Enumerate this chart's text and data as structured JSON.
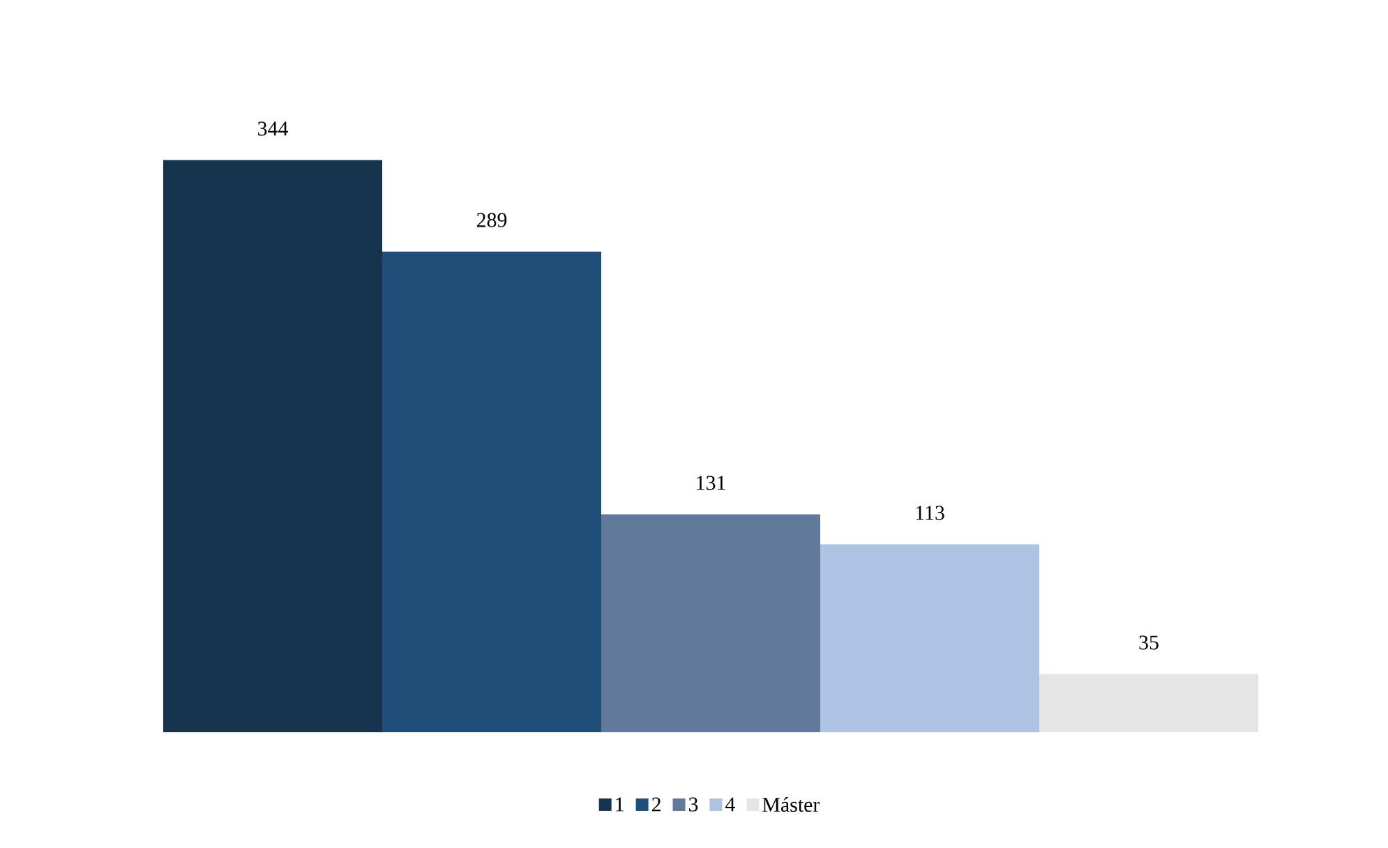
{
  "chart_data": {
    "type": "bar",
    "categories": [
      null
    ],
    "series": [
      {
        "name": "1",
        "color": "#17344f",
        "values": [
          344
        ]
      },
      {
        "name": "2",
        "color": "#1f4e79",
        "values": [
          289
        ]
      },
      {
        "name": "3",
        "color": "#617a9b",
        "values": [
          131
        ]
      },
      {
        "name": "4",
        "color": "#aec3e3",
        "values": [
          113
        ]
      },
      {
        "name": "Máster",
        "color": "#e5e5e5",
        "values": [
          35
        ]
      }
    ],
    "data_labels": true,
    "legend": "bottom"
  }
}
